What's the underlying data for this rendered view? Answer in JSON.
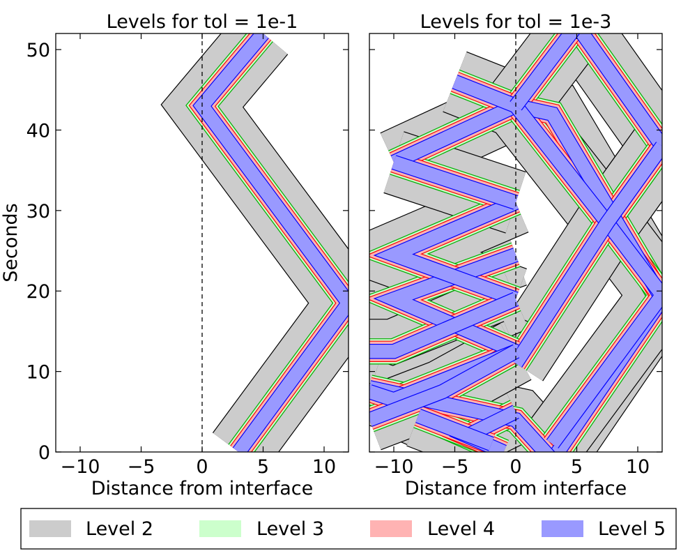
{
  "figure": {
    "legend": [
      {
        "label": "Level 2",
        "color": "#cccccc"
      },
      {
        "label": "Level 3",
        "color": "#ccffcc"
      },
      {
        "label": "Level 4",
        "color": "#ffb3b3"
      },
      {
        "label": "Level 5",
        "color": "#9999ff"
      }
    ]
  },
  "chart_data": [
    {
      "type": "area",
      "title": "Levels for tol = 1e-1",
      "xlabel": "Distance from interface",
      "ylabel": "Seconds",
      "xlim": [
        -12,
        12
      ],
      "ylim": [
        0,
        52
      ],
      "xticks": [
        -10,
        -5,
        0,
        5,
        10
      ],
      "yticks": [
        0,
        10,
        20,
        30,
        40,
        50
      ],
      "grid": false,
      "reference_line": {
        "x": 0,
        "style": "dashed"
      },
      "series": [
        {
          "name": "Level 2",
          "color": "#cccccc",
          "regions": [
            {
              "t": [
                0,
                18.5,
                43,
                52
              ],
              "x_center": [
                3,
                12,
                0,
                5
              ],
              "half_width": 2.6
            }
          ]
        },
        {
          "name": "Level 3",
          "color": "#ccffcc",
          "regions": [
            {
              "t": [
                0,
                18.5,
                43,
                52
              ],
              "x_center": [
                3,
                12,
                0,
                5
              ],
              "half_width": 1.0
            }
          ]
        },
        {
          "name": "Level 4",
          "color": "#ffb3b3",
          "regions": [
            {
              "t": [
                0,
                18.5,
                43,
                52
              ],
              "x_center": [
                3,
                12,
                0,
                5
              ],
              "half_width": 0.8
            }
          ]
        },
        {
          "name": "Level 5",
          "color": "#9999ff",
          "regions": [
            {
              "t": [
                0,
                18.5,
                43,
                52
              ],
              "x_center": [
                3,
                12,
                0,
                5
              ],
              "half_width": 0.55
            }
          ]
        }
      ]
    },
    {
      "type": "area",
      "title": "Levels for tol = 1e-3",
      "xlabel": "Distance from interface",
      "ylabel": "",
      "xlim": [
        -12,
        12
      ],
      "ylim": [
        0,
        52
      ],
      "xticks": [
        -10,
        -5,
        0,
        5,
        10
      ],
      "yticks": [
        0,
        10,
        20,
        30,
        40,
        50
      ],
      "grid": false,
      "reference_line": {
        "x": 0,
        "style": "dashed"
      },
      "series": [
        {
          "name": "Level 2",
          "color": "#cccccc",
          "regions": "wave paths: right-moving diamond network between x=0 and x=12 with crossings near (7.5, 28.5), (12, 19), (12, 38), (3, 1), (5, 52); left-moving reflected waves in x<0 bouncing between x=-10 and x=0 at t≈2,6,12.5,19,24.5,31,36,42"
        },
        {
          "name": "Level 3",
          "color": "#ccffcc",
          "regions": "same paths, narrower band"
        },
        {
          "name": "Level 4",
          "color": "#ffb3b3",
          "regions": "same paths, narrower band"
        },
        {
          "name": "Level 5",
          "color": "#9999ff",
          "regions": "same paths, core band"
        }
      ]
    }
  ]
}
